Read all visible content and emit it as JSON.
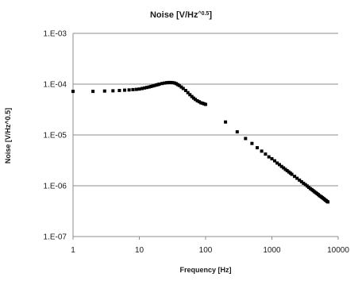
{
  "chart_data": {
    "type": "scatter",
    "title": "Noise [V/Hz",
    "title_superscript": "^0.5",
    "title_suffix": "]",
    "xlabel": "Frequency [Hz]",
    "ylabel": "Noise  [V/Hz^0.5]",
    "xscale": "log",
    "yscale": "log",
    "xlim": [
      1,
      10000
    ],
    "ylim": [
      1e-07,
      0.001
    ],
    "grid": "horizontal major gridlines",
    "legend": "none",
    "marker_color": "#000000",
    "x_tick_labels": [
      "1",
      "10",
      "100",
      "1000",
      "10000"
    ],
    "y_tick_labels": [
      "1.E-07",
      "1.E-06",
      "1.E-05",
      "1.E-04",
      "1.E-03"
    ],
    "series": [
      {
        "x": [
          1,
          2,
          3,
          4,
          5,
          6,
          7,
          8,
          9,
          10,
          11,
          12,
          13,
          14,
          15,
          16,
          17,
          18,
          19,
          20,
          22,
          24,
          26,
          28,
          30,
          32,
          34,
          36,
          38,
          40,
          43,
          46,
          50,
          54,
          58,
          62,
          66,
          70,
          75,
          80,
          85,
          90,
          95,
          100,
          200,
          300,
          400,
          500,
          600,
          700,
          800,
          900,
          1000,
          1100,
          1200,
          1300,
          1400,
          1500,
          1600,
          1700,
          1800,
          1900,
          2000,
          2200,
          2400,
          2600,
          2800,
          3000,
          3200,
          3400,
          3600,
          3800,
          4000,
          4200,
          4400,
          4600,
          4800,
          5000,
          5200,
          5400,
          5600,
          5800,
          6000,
          6200,
          6400,
          6600,
          6800,
          7000
        ],
        "y": [
          7.2e-05,
          7.2e-05,
          7.3e-05,
          7.4e-05,
          7.5e-05,
          7.6e-05,
          7.7e-05,
          7.8e-05,
          7.9e-05,
          8e-05,
          8.2e-05,
          8.4e-05,
          8.6e-05,
          8.8e-05,
          9e-05,
          9.2e-05,
          9.4e-05,
          9.6e-05,
          9.8e-05,
          0.0001,
          0.000103,
          0.000105,
          0.000107,
          0.000108,
          0.000108,
          0.000107,
          0.000105,
          0.000102,
          9.8e-05,
          9.4e-05,
          8.8e-05,
          8.2e-05,
          7.5e-05,
          6.8e-05,
          6.2e-05,
          5.7e-05,
          5.3e-05,
          5e-05,
          4.7e-05,
          4.5e-05,
          4.3e-05,
          4.2e-05,
          4.1e-05,
          4e-05,
          1.8e-05,
          1.15e-05,
          8.5e-06,
          6.8e-06,
          5.6e-06,
          4.8e-06,
          4.2e-06,
          3.7e-06,
          3.4e-06,
          3.1e-06,
          2.8e-06,
          2.6e-06,
          2.4e-06,
          2.25e-06,
          2.1e-06,
          1.98e-06,
          1.87e-06,
          1.77e-06,
          1.68e-06,
          1.53e-06,
          1.4e-06,
          1.29e-06,
          1.2e-06,
          1.12e-06,
          1.05e-06,
          9.9e-07,
          9.3e-07,
          8.8e-07,
          8.4e-07,
          8e-07,
          7.6e-07,
          7.3e-07,
          7e-07,
          6.7e-07,
          6.4e-07,
          6.2e-07,
          6e-07,
          5.8e-07,
          5.6e-07,
          5.4e-07,
          5.2e-07,
          5.1e-07,
          4.9e-07,
          4.8e-07
        ]
      }
    ]
  }
}
